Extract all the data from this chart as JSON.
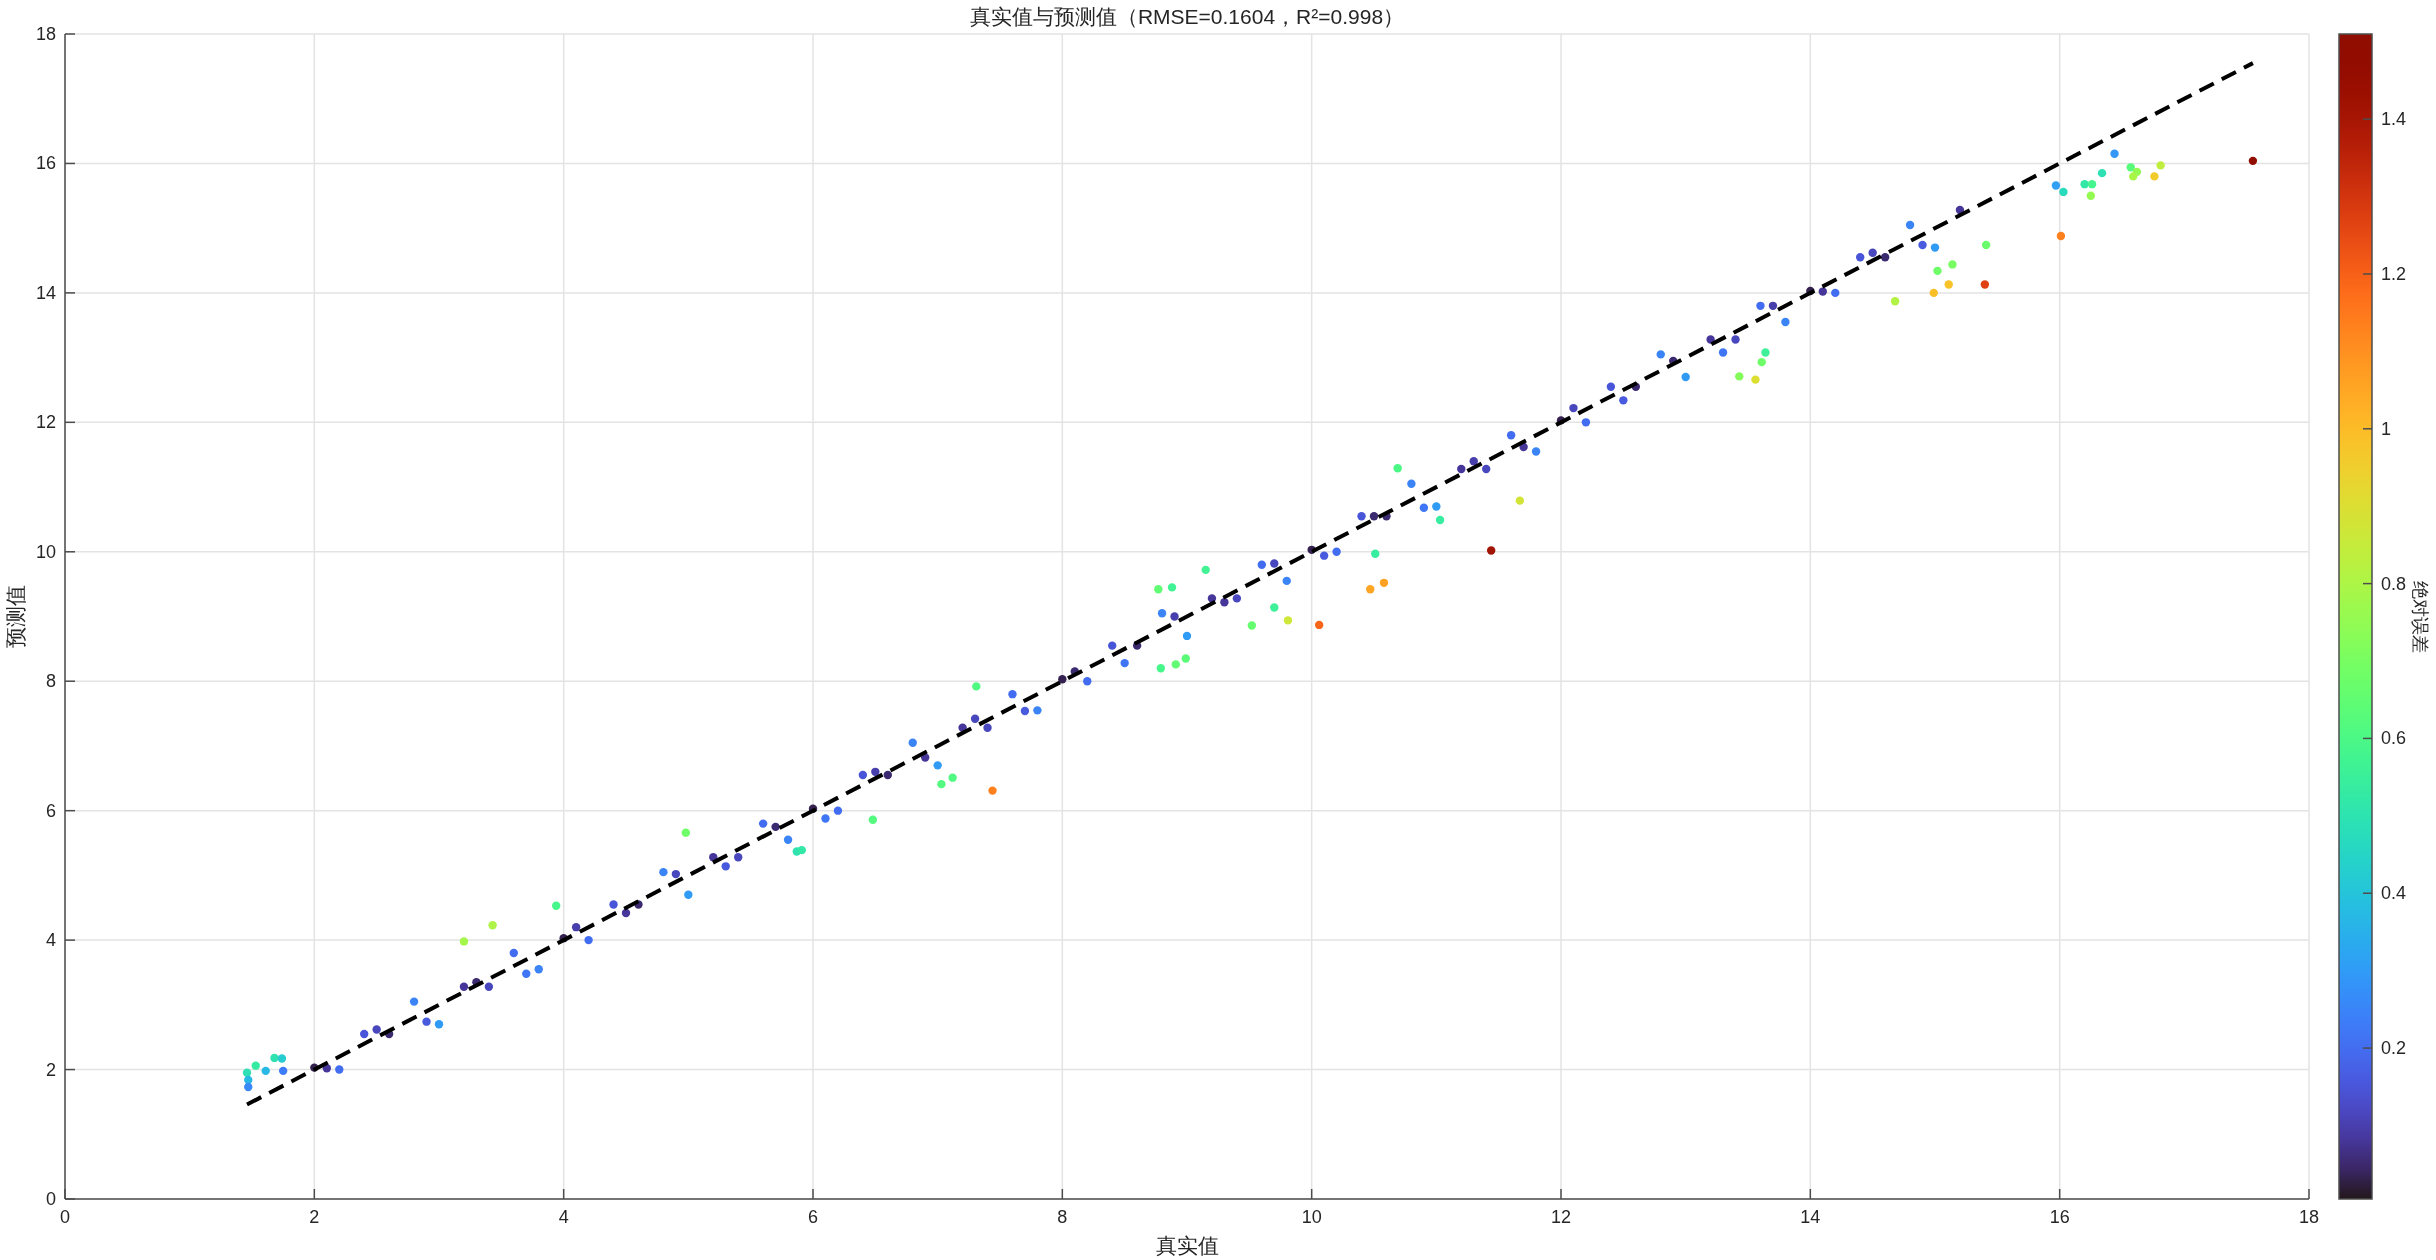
{
  "chart_data": {
    "type": "scatter",
    "title": "真实值与预测值（RMSE=0.1604，R²=0.998）",
    "xlabel": "真实值",
    "ylabel": "预测值",
    "clabel": "绝对误差",
    "xlim": [
      0,
      18
    ],
    "ylim": [
      0,
      18
    ],
    "xticks": [
      0,
      2,
      4,
      6,
      8,
      10,
      12,
      14,
      16,
      18
    ],
    "yticks": [
      0,
      2,
      4,
      6,
      8,
      10,
      12,
      14,
      16,
      18
    ],
    "clim": [
      0.005,
      1.51
    ],
    "cticks": [
      0.2,
      0.4,
      0.6,
      0.8,
      1,
      1.2,
      1.4
    ],
    "grid": true,
    "series": [
      {
        "type": "scatter",
        "marker": "circle",
        "x": [
          2,
          2.2,
          2.4,
          2.6,
          2.8,
          3,
          3.2,
          3.4,
          3.6,
          3.8,
          4,
          4.2,
          4.4,
          4.6,
          4.8,
          5,
          5.2,
          5.4,
          5.6,
          5.8,
          6,
          6.2,
          6.4,
          6.6,
          6.8,
          7,
          7.2,
          7.4,
          7.6,
          7.8,
          8,
          8.2,
          8.4,
          8.6,
          8.8,
          9,
          9.2,
          9.4,
          9.6,
          9.8,
          10,
          10.2,
          10.4,
          10.6,
          10.8,
          11,
          11.2,
          11.4,
          11.6,
          11.8,
          12,
          12.2,
          12.4,
          12.6,
          12.8,
          13,
          13.2,
          13.4,
          13.6,
          13.8,
          14,
          14.2,
          14.4,
          14.6,
          14.8,
          15,
          15.2,
          2.1,
          2.5,
          2.9,
          3.3,
          3.7,
          4.1,
          4.5,
          4.9,
          5.3,
          5.7,
          6.1,
          6.5,
          6.9,
          7.3,
          7.7,
          8.1,
          8.5,
          8.9,
          9.3,
          9.7,
          10.1,
          10.5,
          10.9,
          11.3,
          11.7,
          12.1,
          12.5,
          12.9,
          13.3,
          13.7,
          14.1,
          14.5,
          14.9,
          17.55,
          16.44,
          16.57,
          16.62,
          16.59,
          16.76,
          16.81,
          16.34,
          16.2,
          16.26,
          16.25,
          15.97,
          16.03,
          16.01,
          15.4,
          15.11,
          14.99,
          14.68,
          15.14,
          15.02,
          15.41,
          13.56,
          13.43,
          13.61,
          13.64,
          11.44,
          10.47,
          10.58,
          10.06,
          9.81,
          9.52,
          11.67,
          11.03,
          10.51,
          10.69,
          9.15,
          8.77,
          8.88,
          7.44,
          7.03,
          7.12,
          7.31,
          8.79,
          8.91,
          8.99,
          9.7,
          1.46,
          1.47,
          1.47,
          1.53,
          1.61,
          1.68,
          1.74,
          1.75,
          3.2,
          3.43,
          4.98,
          3.94,
          5.87,
          5.91,
          6.48
        ],
        "values": [
          2.03,
          2,
          2.55,
          2.55,
          3.05,
          2.7,
          3.28,
          3.28,
          3.8,
          3.55,
          4.03,
          4,
          4.55,
          4.55,
          5.05,
          4.7,
          5.28,
          5.28,
          5.8,
          5.55,
          6.03,
          6,
          6.55,
          6.55,
          7.05,
          6.7,
          7.28,
          7.28,
          7.8,
          7.55,
          8.03,
          8,
          8.55,
          8.55,
          9.05,
          8.7,
          9.28,
          9.28,
          9.8,
          9.55,
          10.03,
          10,
          10.55,
          10.55,
          11.05,
          10.7,
          11.28,
          11.28,
          11.8,
          11.55,
          12.03,
          12,
          12.55,
          12.55,
          13.05,
          12.7,
          13.28,
          13.28,
          13.8,
          13.55,
          14.03,
          14,
          14.55,
          14.55,
          15.05,
          14.7,
          15.28,
          2.02,
          2.62,
          2.74,
          3.35,
          3.48,
          4.2,
          4.42,
          5.02,
          5.14,
          5.75,
          5.88,
          6.6,
          6.82,
          7.42,
          7.54,
          8.15,
          8.28,
          9,
          9.22,
          9.82,
          9.94,
          10.55,
          10.68,
          11.4,
          11.62,
          12.22,
          12.34,
          12.95,
          13.08,
          13.8,
          14.02,
          14.62,
          14.74,
          16.04,
          16.15,
          15.94,
          15.87,
          15.8,
          15.8,
          15.97,
          15.85,
          15.68,
          15.68,
          15.5,
          15.66,
          15.56,
          14.88,
          14.13,
          14.13,
          14,
          13.87,
          14.44,
          14.34,
          14.74,
          12.66,
          12.71,
          12.93,
          13.08,
          10.02,
          9.42,
          9.52,
          8.87,
          8.94,
          8.86,
          10.79,
          10.49,
          9.97,
          11.29,
          9.72,
          9.42,
          9.45,
          6.31,
          6.41,
          6.51,
          7.92,
          8.2,
          8.26,
          8.35,
          9.14,
          1.95,
          1.84,
          1.73,
          2.06,
          1.98,
          2.18,
          2.17,
          1.98,
          3.98,
          4.23,
          5.66,
          4.53,
          5.37,
          5.39,
          5.86
        ],
        "colors": [
          "#34214f",
          "#426df0",
          "#4955d9",
          "#3b2a6f",
          "#3a84f6",
          "#309bf5",
          "#463699",
          "#4847bd",
          "#426df0",
          "#3a84f6",
          "#34214f",
          "#426df0",
          "#4955d9",
          "#3b2a6f",
          "#3a84f6",
          "#309bf5",
          "#463699",
          "#4847bd",
          "#426df0",
          "#3a84f6",
          "#34214f",
          "#426df0",
          "#4955d9",
          "#3b2a6f",
          "#3a84f6",
          "#309bf5",
          "#463699",
          "#4847bd",
          "#426df0",
          "#3a84f6",
          "#34214f",
          "#426df0",
          "#4955d9",
          "#3b2a6f",
          "#3a84f6",
          "#309bf5",
          "#463699",
          "#4847bd",
          "#426df0",
          "#3a84f6",
          "#34214f",
          "#426df0",
          "#4955d9",
          "#3b2a6f",
          "#3a84f6",
          "#309bf5",
          "#463699",
          "#4847bd",
          "#426df0",
          "#3a84f6",
          "#34214f",
          "#426df0",
          "#4955d9",
          "#3b2a6f",
          "#3a84f6",
          "#309bf5",
          "#463699",
          "#4847bd",
          "#426df0",
          "#3a84f6",
          "#34214f",
          "#426df0",
          "#4955d9",
          "#3b2a6f",
          "#3a84f6",
          "#309bf5",
          "#463699",
          "#463699",
          "#4847bd",
          "#485bdf",
          "#3b2a6f",
          "#3f76f5",
          "#473fac",
          "#463699",
          "#4847bd",
          "#485bdf",
          "#3b2a6f",
          "#3f76f5",
          "#473fac",
          "#463699",
          "#4847bd",
          "#485bdf",
          "#3b2a6f",
          "#3f76f5",
          "#473fac",
          "#463699",
          "#4847bd",
          "#485bdf",
          "#3b2a6f",
          "#3f76f5",
          "#473fac",
          "#463699",
          "#4847bd",
          "#485bdf",
          "#3b2a6f",
          "#3f76f5",
          "#473fac",
          "#463699",
          "#4847bd",
          "#485bdf",
          "#900d00",
          "#3297f5",
          "#58fa7b",
          "#93fa51",
          "#a9f548",
          "#f1ca2c",
          "#c0ee3e",
          "#2ee0b3",
          "#33e7a7",
          "#45f58f",
          "#93fa51",
          "#2fa0f4",
          "#29dbbd",
          "#ff811d",
          "#df4112",
          "#f8c329",
          "#f9bf29",
          "#b2f244",
          "#78fd62",
          "#6efe67",
          "#6afd6b",
          "#dcde33",
          "#83fc5b",
          "#6efe67",
          "#3ef198",
          "#a11303",
          "#ffa524",
          "#ffa223",
          "#f6651a",
          "#cee73a",
          "#65fc70",
          "#d2e438",
          "#37ed9f",
          "#37ed9f",
          "#4bf886",
          "#41f394",
          "#61fc73",
          "#41f394",
          "#ff811d",
          "#54fa7f",
          "#4ff982",
          "#4ff982",
          "#48f78b",
          "#61fc73",
          "#5cfb77",
          "#3ef198",
          "#2ee0b3",
          "#28b8e4",
          "#3989f6",
          "#35eba2",
          "#28b8e4",
          "#2fe2b0",
          "#26ccd0",
          "#3e7bf7",
          "#a4f64a",
          "#adf446",
          "#6efe67",
          "#48f78b",
          "#2fe2b0",
          "#33e7a7",
          "#54fa7f"
        ]
      },
      {
        "type": "line",
        "x": [
          1.46,
          17.55
        ],
        "values": [
          1.46,
          17.55
        ],
        "color": "#000000",
        "line_style": "dashed"
      }
    ]
  }
}
